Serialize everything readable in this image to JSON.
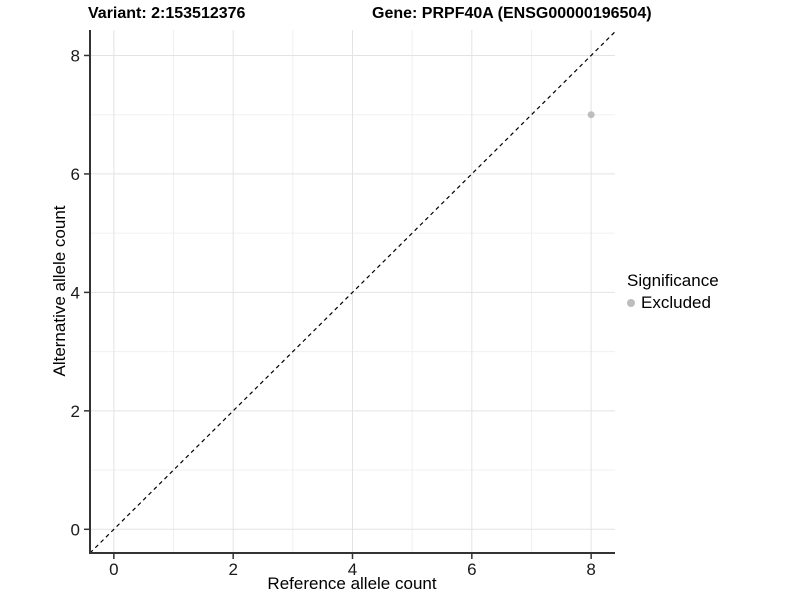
{
  "chart_data": {
    "type": "scatter",
    "title_left": "Variant: 2:153512376",
    "title_right": "Gene: PRPF40A (ENSG00000196504)",
    "xlabel": "Reference allele count",
    "ylabel": "Alternative allele count",
    "xlim": [
      -0.4,
      8.4
    ],
    "ylim": [
      -0.4,
      8.43
    ],
    "x_ticks": [
      0,
      2,
      4,
      6,
      8
    ],
    "y_ticks": [
      0,
      2,
      4,
      6,
      8
    ],
    "x_minor_ticks": [
      1,
      3,
      5,
      7
    ],
    "y_minor_ticks": [
      1,
      3,
      5,
      7
    ],
    "grid": "on",
    "identity_line": {
      "style": "dashed",
      "color": "#000000",
      "equation": "y = x"
    },
    "points": [
      {
        "x": 8,
        "y": 7,
        "significance": "Excluded"
      }
    ],
    "legend": {
      "title": "Significance",
      "position": "right",
      "entries": [
        {
          "label": "Excluded",
          "color": "#bdbdbd"
        }
      ]
    },
    "colors": {
      "point_excluded": "#bdbdbd",
      "grid_major": "#e3e3e3",
      "grid_minor": "#f0f0f0",
      "axis_line": "#333333",
      "tick_label": "#1a1a1a",
      "background": "#ffffff"
    }
  }
}
